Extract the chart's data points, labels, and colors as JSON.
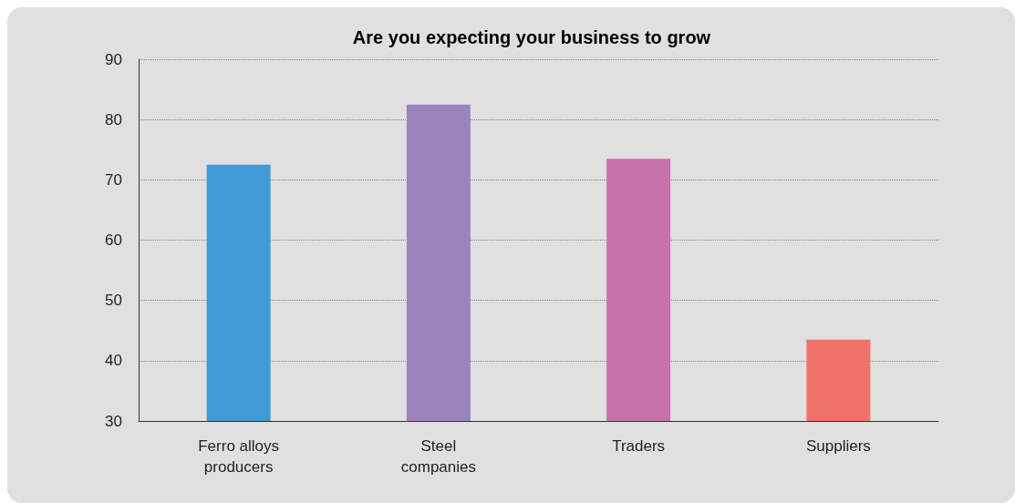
{
  "chart_data": {
    "type": "bar",
    "title": "Are you expecting your business to grow",
    "categories": [
      "Ferro alloys\nproducers",
      "Steel\ncompanies",
      "Traders",
      "Suppliers"
    ],
    "values": [
      72.5,
      82.5,
      73.5,
      43.5
    ],
    "colors": [
      "#429ad6",
      "#9a84bc",
      "#c673ad",
      "#f0736b"
    ],
    "ylim": [
      30,
      90
    ],
    "yticks": [
      30,
      40,
      50,
      60,
      70,
      80,
      90
    ],
    "grid": "y"
  }
}
